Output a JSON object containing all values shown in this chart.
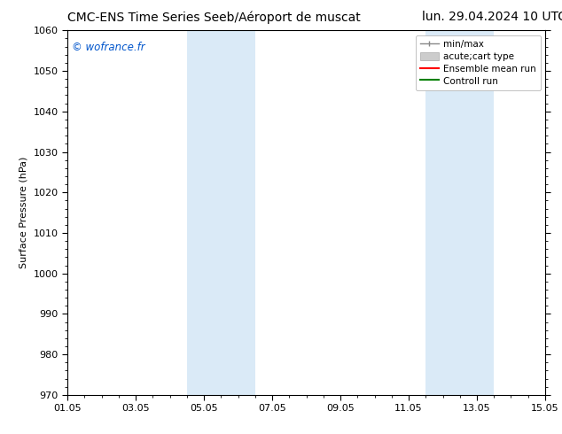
{
  "title_left": "CMC-ENS Time Series Seeb/Aéroport de muscat",
  "title_right": "lun. 29.04.2024 10 UTC",
  "ylabel": "Surface Pressure (hPa)",
  "xlim_start": 0.0,
  "xlim_end": 14.0,
  "ylim_bottom": 970,
  "ylim_top": 1060,
  "yticks": [
    970,
    980,
    990,
    1000,
    1010,
    1020,
    1030,
    1040,
    1050,
    1060
  ],
  "xtick_positions": [
    0,
    2,
    4,
    6,
    8,
    10,
    12,
    14
  ],
  "xtick_labels": [
    "01.05",
    "03.05",
    "05.05",
    "07.05",
    "09.05",
    "11.05",
    "13.05",
    "15.05"
  ],
  "shaded_bands": [
    {
      "x_start": 3.5,
      "x_end": 5.5
    },
    {
      "x_start": 10.5,
      "x_end": 12.5
    }
  ],
  "shaded_color": "#daeaf7",
  "watermark": "© wofrance.fr",
  "watermark_color": "#0055cc",
  "bg_color": "#ffffff",
  "spine_color": "#000000",
  "tick_color": "#000000",
  "title_fontsize": 10,
  "axis_label_fontsize": 8,
  "tick_fontsize": 8,
  "legend_fontsize": 7.5
}
